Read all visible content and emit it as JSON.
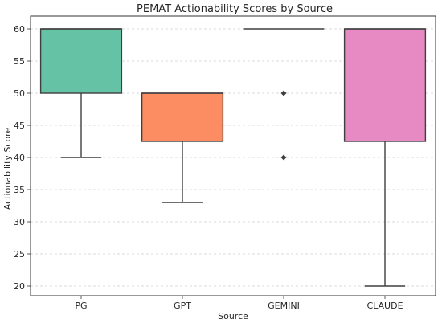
{
  "chart_data": {
    "type": "box",
    "title": "PEMAT Actionability Scores by Source",
    "xlabel": "Source",
    "ylabel": "Actionability Score",
    "categories": [
      "PG",
      "GPT",
      "GEMINI",
      "CLAUDE"
    ],
    "ylim": [
      18.5,
      62
    ],
    "yticks": [
      20,
      25,
      30,
      35,
      40,
      45,
      50,
      55,
      60
    ],
    "grid": "horizontal dashed",
    "boxes": [
      {
        "category": "PG",
        "whisker_low": 40,
        "q1": 50,
        "median": 60,
        "q3": 60,
        "whisker_high": 60,
        "outliers": [],
        "color": "#66c2a5"
      },
      {
        "category": "GPT",
        "whisker_low": 33,
        "q1": 42.5,
        "median": 50,
        "q3": 50,
        "whisker_high": 50,
        "outliers": [],
        "color": "#fc8d62"
      },
      {
        "category": "GEMINI",
        "whisker_low": 60,
        "q1": 60,
        "median": 60,
        "q3": 60,
        "whisker_high": 60,
        "outliers": [
          50,
          40
        ],
        "color": "#8da0cb"
      },
      {
        "category": "CLAUDE",
        "whisker_low": 20,
        "q1": 42.5,
        "median": 60,
        "q3": 60,
        "whisker_high": 60,
        "outliers": [],
        "color": "#e78ac3"
      }
    ]
  }
}
